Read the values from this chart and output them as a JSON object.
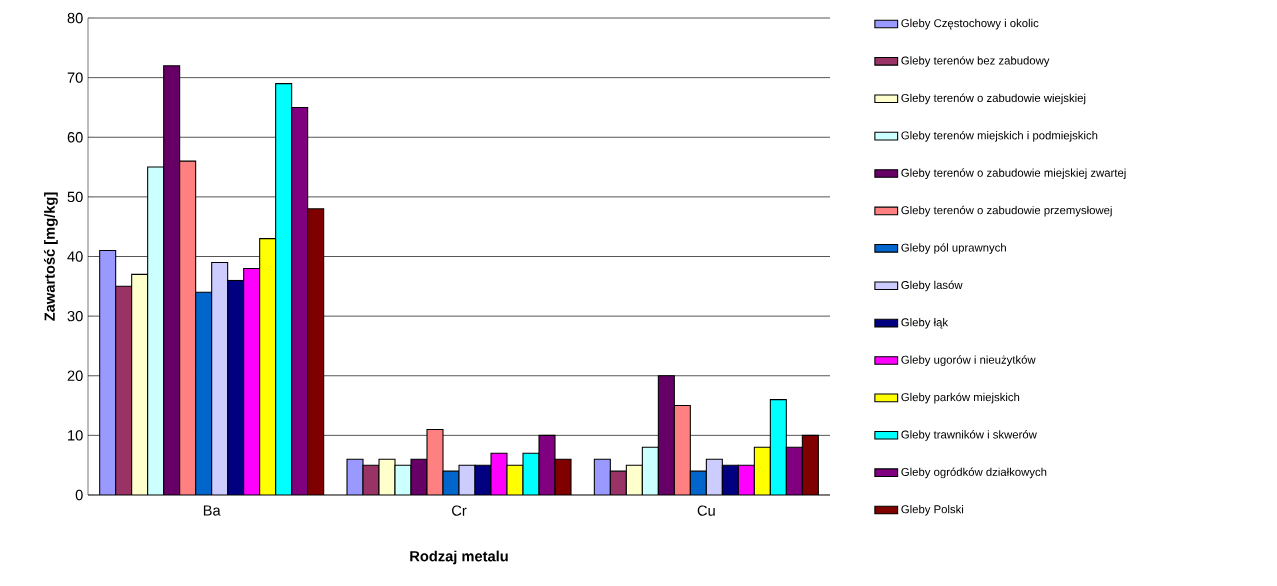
{
  "chart_data": {
    "type": "bar",
    "xlabel": "Rodzaj metalu",
    "ylabel": "Zawartość [mg/kg]",
    "categories": [
      "Ba",
      "Cr",
      "Cu"
    ],
    "series": [
      {
        "name": "Gleby Częstochowy i okolic",
        "color": "#9999ff",
        "values": [
          41,
          6,
          6
        ]
      },
      {
        "name": "Gleby terenów bez zabudowy",
        "color": "#993366",
        "values": [
          35,
          5,
          4
        ]
      },
      {
        "name": "Gleby terenów o zabudowie wiejskiej",
        "color": "#ffffcc",
        "values": [
          37,
          6,
          5
        ]
      },
      {
        "name": "Gleby terenów miejskich i podmiejskich",
        "color": "#ccffff",
        "values": [
          55,
          5,
          8
        ]
      },
      {
        "name": "Gleby terenów o zabudowie miejskiej zwartej",
        "color": "#660066",
        "values": [
          72,
          6,
          20
        ]
      },
      {
        "name": "Gleby terenów o zabudowie przemysłowej",
        "color": "#ff8080",
        "values": [
          56,
          11,
          15
        ]
      },
      {
        "name": "Gleby pól uprawnych",
        "color": "#0066cc",
        "values": [
          34,
          4,
          4
        ]
      },
      {
        "name": "Gleby lasów",
        "color": "#ccccff",
        "values": [
          39,
          5,
          6
        ]
      },
      {
        "name": "Gleby łąk",
        "color": "#000080",
        "values": [
          36,
          5,
          5
        ]
      },
      {
        "name": "Gleby ugorów i nieużytków",
        "color": "#ff00ff",
        "values": [
          38,
          7,
          5
        ]
      },
      {
        "name": "Gleby parków miejskich",
        "color": "#ffff00",
        "values": [
          43,
          5,
          8
        ]
      },
      {
        "name": "Gleby trawników i skwerów",
        "color": "#00ffff",
        "values": [
          69,
          7,
          16
        ]
      },
      {
        "name": "Gleby ogródków działkowych",
        "color": "#800080",
        "values": [
          65,
          10,
          8
        ]
      },
      {
        "name": "Gleby Polski",
        "color": "#800000",
        "values": [
          48,
          6,
          10
        ]
      }
    ],
    "ylim": [
      0,
      80
    ],
    "yticks": [
      0,
      10,
      20,
      30,
      40,
      50,
      60,
      70,
      80
    ],
    "grid": "y",
    "legend": "right"
  }
}
